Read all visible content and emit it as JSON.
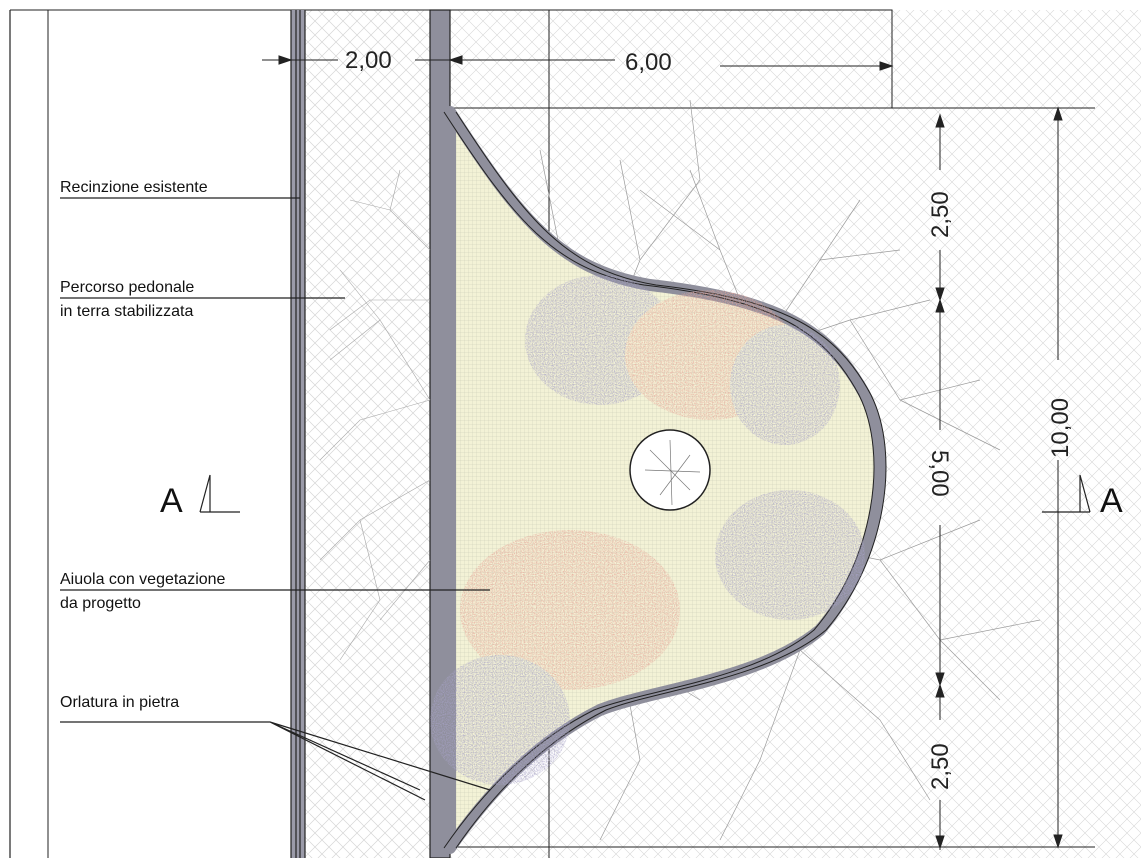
{
  "labels": {
    "fence": "Recinzione esistente",
    "path_line1": "Percorso pedonale",
    "path_line2": "in terra stabilizzata",
    "bed_line1": "Aiuola con vegetazione",
    "bed_line2": "da progetto",
    "edging": "Orlatura in pietra"
  },
  "dimensions": {
    "path_width": "2,00",
    "bed_depth": "6,00",
    "top_segment": "2,50",
    "middle_segment": "5,00",
    "bottom_segment": "2,50",
    "total_length": "10,00"
  },
  "section": {
    "left": "A",
    "right": "A"
  },
  "colors": {
    "stone_edging": "#8f8f9c",
    "bed_fill": "#f3f2d6",
    "shrub_pink": "#e8a79a",
    "shrub_lilac": "#a8a3c8",
    "line": "#222222"
  }
}
